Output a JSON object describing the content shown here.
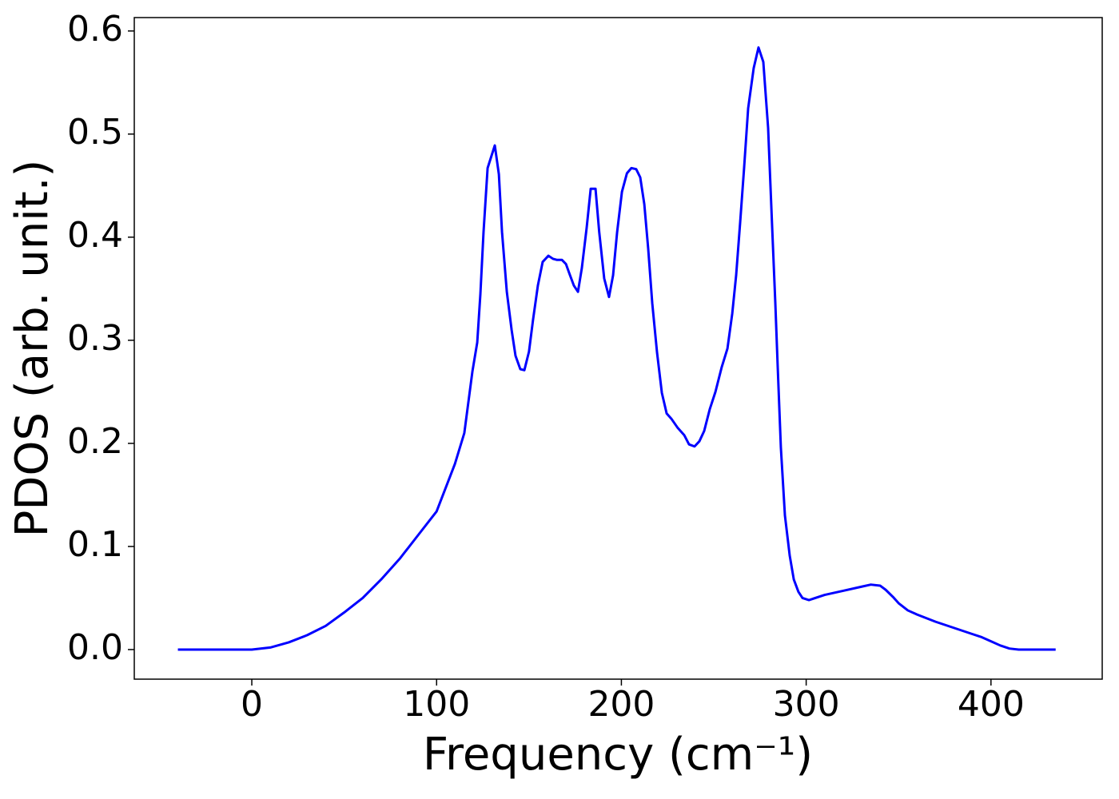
{
  "chart_data": {
    "type": "line",
    "xlabel": "Frequency (cm⁻¹)",
    "ylabel": "PDOS (arb. unit.)",
    "xlim": [
      -63.6,
      460.2
    ],
    "ylim": [
      -0.0287,
      0.613
    ],
    "xticks": [
      0,
      100,
      200,
      300,
      400
    ],
    "yticks": [
      {
        "value": 0,
        "label": "0.0"
      },
      0.1,
      0.2,
      0.3,
      0.4,
      0.5,
      0.6
    ],
    "grid": false,
    "series": [
      {
        "color": "#0000ff",
        "x": [
          -40,
          -20,
          0,
          10,
          20,
          30,
          40,
          50,
          60,
          70,
          80,
          90,
          100,
          109.9,
          115,
          119.4,
          122,
          123.7,
          125.4,
          127.6,
          131.5,
          133.7,
          135.4,
          138,
          140.6,
          142.7,
          145.3,
          147.5,
          150,
          152.2,
          154.8,
          157.4,
          160.5,
          163,
          165,
          167.8,
          170,
          172,
          174.3,
          176.5,
          178.6,
          181.2,
          183.4,
          186,
          188,
          190.7,
          193.3,
          195.5,
          197.7,
          200.3,
          203,
          205.4,
          208,
          210.2,
          212.4,
          214.5,
          216.7,
          219.3,
          221.9,
          224.5,
          227,
          230.5,
          234,
          236.6,
          239.6,
          242.2,
          244.8,
          247.8,
          250.9,
          254.3,
          257.4,
          260,
          262.1,
          264.3,
          266.4,
          268.6,
          271.6,
          274.2,
          276.8,
          279.4,
          281.6,
          283.3,
          284.6,
          286.3,
          288.5,
          291.1,
          293.3,
          295.8,
          298,
          301.5,
          310,
          320,
          330,
          335,
          340,
          343,
          347,
          350,
          355,
          360,
          370,
          380,
          390,
          395,
          400,
          405,
          410,
          415,
          435
        ],
        "values": [
          0,
          0,
          0,
          0.002,
          0.007,
          0.014,
          0.023,
          0.036,
          0.05,
          0.068,
          0.088,
          0.111,
          0.134,
          0.18,
          0.21,
          0.27,
          0.298,
          0.345,
          0.405,
          0.467,
          0.489,
          0.461,
          0.405,
          0.347,
          0.31,
          0.285,
          0.272,
          0.271,
          0.289,
          0.32,
          0.353,
          0.376,
          0.382,
          0.379,
          0.378,
          0.378,
          0.374,
          0.364,
          0.353,
          0.347,
          0.37,
          0.409,
          0.447,
          0.447,
          0.405,
          0.36,
          0.342,
          0.363,
          0.405,
          0.444,
          0.462,
          0.467,
          0.466,
          0.458,
          0.432,
          0.389,
          0.336,
          0.288,
          0.249,
          0.229,
          0.224,
          0.215,
          0.208,
          0.199,
          0.197,
          0.202,
          0.212,
          0.233,
          0.25,
          0.274,
          0.292,
          0.326,
          0.363,
          0.415,
          0.467,
          0.525,
          0.564,
          0.584,
          0.57,
          0.506,
          0.409,
          0.336,
          0.274,
          0.196,
          0.13,
          0.091,
          0.068,
          0.056,
          0.05,
          0.048,
          0.053,
          0.057,
          0.061,
          0.063,
          0.062,
          0.058,
          0.051,
          0.045,
          0.038,
          0.034,
          0.027,
          0.021,
          0.015,
          0.012,
          0.008,
          0.004,
          0.001,
          0,
          0
        ]
      }
    ]
  }
}
